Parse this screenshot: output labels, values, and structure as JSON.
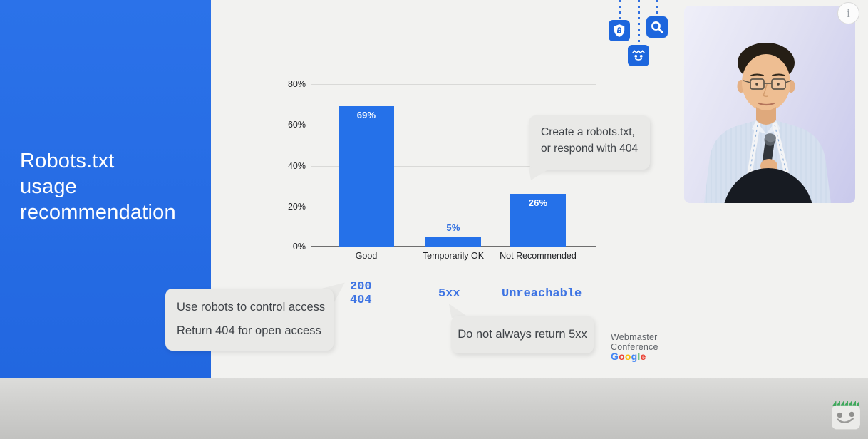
{
  "slide": {
    "title_line1": "Robots.txt",
    "title_line2": "usage",
    "title_line3": "recommendation",
    "panel_color": "#2571e9"
  },
  "chart_data": {
    "type": "bar",
    "title": "Robots.txt usage recommendation",
    "categories": [
      "Good",
      "Temporarily OK",
      "Not Recommended"
    ],
    "values": [
      69,
      5,
      26
    ],
    "value_labels": [
      "69%",
      "5%",
      "26%"
    ],
    "y_ticks": [
      "80%",
      "60%",
      "40%",
      "20%",
      "0%"
    ],
    "ylim": [
      0,
      80
    ],
    "grid": true,
    "legend": false,
    "bar_color": "#2571e9",
    "value_label_inside_color": "#ffffff",
    "value_label_outside_color": "#2e6ee0"
  },
  "http_status": {
    "good_line1": "200",
    "good_line2": "404",
    "temporarily_ok": "5xx",
    "not_recommended": "Unreachable",
    "text_color": "#3e74e3"
  },
  "callouts": {
    "create": {
      "line1": "Create a robots.txt,",
      "line2": "or respond with 404"
    },
    "robots": {
      "line1": "Use robots to control access",
      "line2": "Return 404 for open access"
    },
    "five_xx": {
      "text": "Do not always return 5xx"
    }
  },
  "icons": {
    "hanging": [
      "lock-shield",
      "robot-face",
      "search-magnifier"
    ],
    "corner_mascot": "robot-face-with-green-spikes"
  },
  "video_overlay": {
    "info_label": "i"
  },
  "branding": {
    "line1": "Webmaster",
    "line2": "Conference",
    "brand_letters": [
      {
        "ch": "G",
        "color": "#4285F4"
      },
      {
        "ch": "o",
        "color": "#EA4335"
      },
      {
        "ch": "o",
        "color": "#FBBC05"
      },
      {
        "ch": "g",
        "color": "#4285F4"
      },
      {
        "ch": "l",
        "color": "#34A853"
      },
      {
        "ch": "e",
        "color": "#EA4335"
      }
    ]
  }
}
